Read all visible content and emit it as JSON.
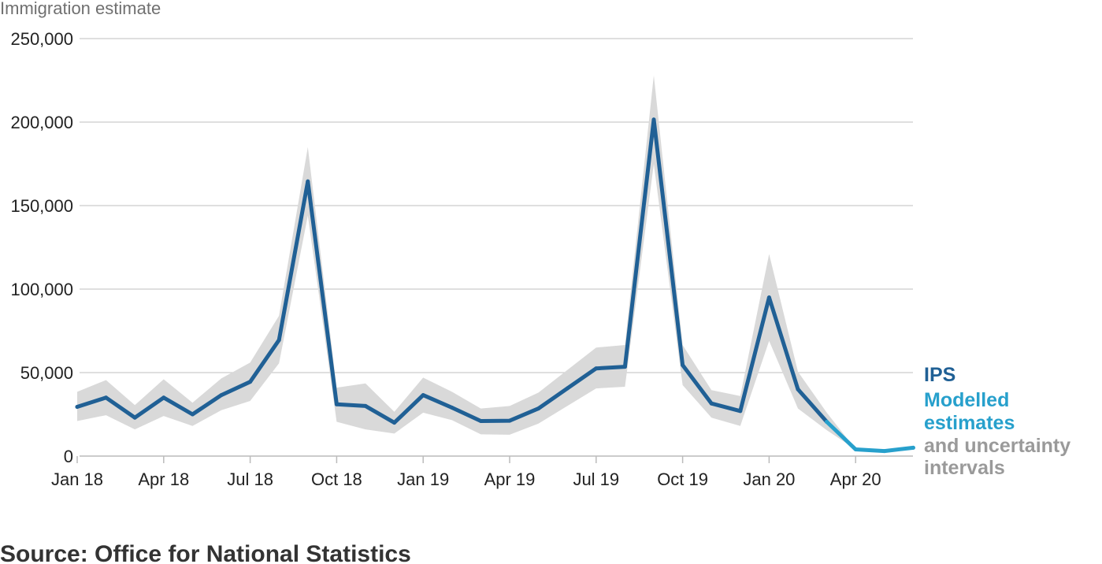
{
  "chart_data": {
    "type": "line",
    "ylabel": "Immigration estimate",
    "ylim": [
      0,
      250000
    ],
    "yticks": [
      0,
      50000,
      100000,
      150000,
      200000,
      250000
    ],
    "ytick_labels": [
      "0",
      "50,000",
      "100,000",
      "150,000",
      "200,000",
      "250,000"
    ],
    "xticks": [
      {
        "label": "Jan 18",
        "month": "2018-01"
      },
      {
        "label": "Apr 18",
        "month": "2018-04"
      },
      {
        "label": "Jul 18",
        "month": "2018-07"
      },
      {
        "label": "Oct 18",
        "month": "2018-10"
      },
      {
        "label": "Jan 19",
        "month": "2019-01"
      },
      {
        "label": "Apr 19",
        "month": "2019-04"
      },
      {
        "label": "Jul 19",
        "month": "2019-07"
      },
      {
        "label": "Oct 19",
        "month": "2019-10"
      },
      {
        "label": "Jan 20",
        "month": "2020-01"
      },
      {
        "label": "Apr 20",
        "month": "2020-04"
      }
    ],
    "x": [
      "2018-01",
      "2018-02",
      "2018-03",
      "2018-04",
      "2018-05",
      "2018-06",
      "2018-07",
      "2018-08",
      "2018-09",
      "2018-10",
      "2018-11",
      "2018-12",
      "2019-01",
      "2019-02",
      "2019-03",
      "2019-04",
      "2019-05",
      "2019-06",
      "2019-07",
      "2019-08",
      "2019-09",
      "2019-10",
      "2019-11",
      "2019-12",
      "2020-01",
      "2020-02",
      "2020-03",
      "2020-04",
      "2020-05",
      "2020-06"
    ],
    "series": [
      {
        "name": "IPS",
        "color": "#206095",
        "values": [
          29500,
          35000,
          23000,
          35000,
          25000,
          36500,
          44500,
          69500,
          164500,
          31000,
          30000,
          20000,
          36500,
          29000,
          21000,
          21200,
          28500,
          40500,
          52500,
          53500,
          201500,
          54500,
          31500,
          27000,
          95000,
          40000,
          20500,
          null,
          null,
          null
        ]
      },
      {
        "name": "Modelled estimates",
        "color": "#27a0cc",
        "values": [
          null,
          null,
          null,
          null,
          null,
          null,
          null,
          null,
          null,
          null,
          null,
          null,
          null,
          null,
          null,
          null,
          null,
          null,
          null,
          null,
          null,
          null,
          null,
          null,
          null,
          null,
          20500,
          4000,
          3000,
          5000
        ]
      }
    ],
    "interval": {
      "name": "and uncertainty intervals",
      "color": "#d9d9d9",
      "upper": [
        38500,
        45500,
        30500,
        46000,
        32000,
        46500,
        56000,
        84000,
        185000,
        41000,
        43500,
        26500,
        47000,
        38500,
        28500,
        30000,
        38000,
        51500,
        65000,
        66500,
        228000,
        66500,
        39500,
        36000,
        121000,
        50500,
        26000,
        4000,
        3000,
        5000
      ],
      "lower": [
        21000,
        24500,
        16000,
        24000,
        18000,
        27500,
        33000,
        55500,
        144000,
        20500,
        16000,
        13500,
        26000,
        21500,
        13000,
        12800,
        19500,
        30000,
        40500,
        41500,
        175000,
        42500,
        23000,
        18000,
        69000,
        28500,
        15500,
        4000,
        3000,
        5000
      ]
    },
    "legend_position": "right",
    "grid": true
  },
  "source": "Source: Office for National Statistics"
}
